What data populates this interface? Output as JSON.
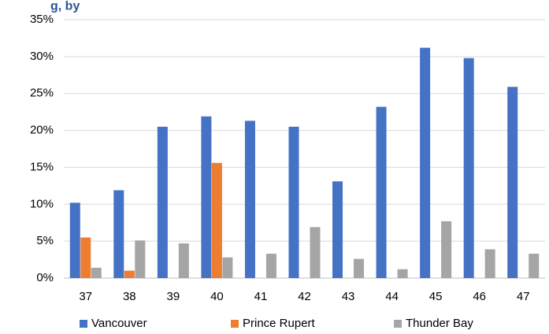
{
  "chart_data": {
    "type": "bar",
    "title_fragment": "g, by",
    "categories": [
      "37",
      "38",
      "39",
      "40",
      "41",
      "42",
      "43",
      "44",
      "45",
      "46",
      "47"
    ],
    "series": [
      {
        "name": "Vancouver",
        "color": "#4472c4",
        "values": [
          10.2,
          11.9,
          20.5,
          21.9,
          21.3,
          20.5,
          13.1,
          23.2,
          31.2,
          29.8,
          25.9
        ]
      },
      {
        "name": "Prince Rupert",
        "color": "#ed7d31",
        "values": [
          5.5,
          1.0,
          null,
          15.6,
          null,
          null,
          null,
          null,
          null,
          null,
          null
        ]
      },
      {
        "name": "Thunder Bay",
        "color": "#a5a5a5",
        "values": [
          1.4,
          5.1,
          4.7,
          2.8,
          3.3,
          6.9,
          2.6,
          1.2,
          7.7,
          3.9,
          3.3
        ]
      }
    ],
    "y_ticks": [
      "0%",
      "5%",
      "10%",
      "15%",
      "20%",
      "25%",
      "30%",
      "35%"
    ],
    "ylim": [
      0,
      35
    ],
    "grid": true,
    "legend_position": "bottom"
  }
}
